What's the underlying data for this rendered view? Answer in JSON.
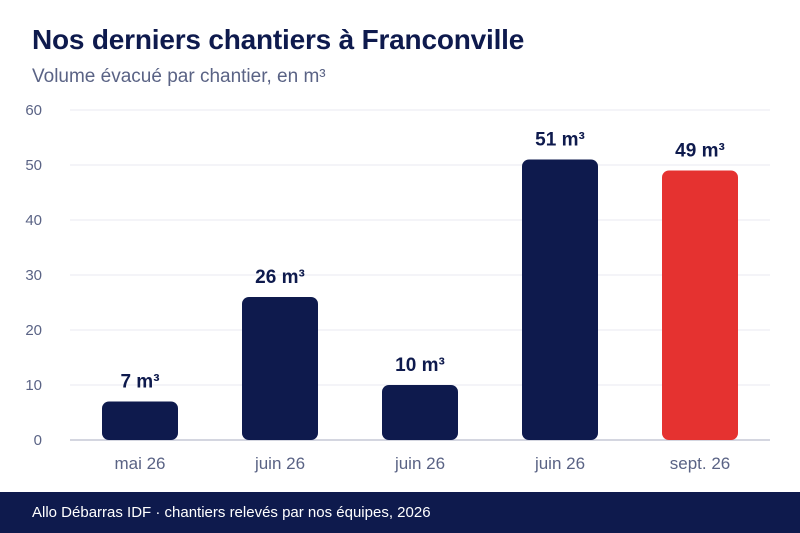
{
  "title": "Nos derniers chantiers à Franconville",
  "subtitle": "Volume évacué par chantier, en m³",
  "footer": "Allo Débarras IDF · chantiers relevés par nos équipes, 2026",
  "colors": {
    "bar": "#0e1a4d",
    "highlight": "#e53230",
    "grid": "#e8eaf0",
    "baseline": "#c5c9d6",
    "tick_text": "#5a6385",
    "label_text": "#0e1a4d"
  },
  "chart_data": {
    "type": "bar",
    "categories": [
      "mai 26",
      "juin 26",
      "juin 26",
      "juin 26",
      "sept. 26"
    ],
    "values": [
      7,
      26,
      10,
      51,
      49
    ],
    "data_labels": [
      "7 m³",
      "26 m³",
      "10 m³",
      "51 m³",
      "49 m³"
    ],
    "highlight_index": 4,
    "ylim": [
      0,
      60
    ],
    "yticks": [
      "0",
      "10",
      "20",
      "30",
      "40",
      "50",
      "60"
    ],
    "grid": true,
    "xlabel": "",
    "ylabel": ""
  }
}
